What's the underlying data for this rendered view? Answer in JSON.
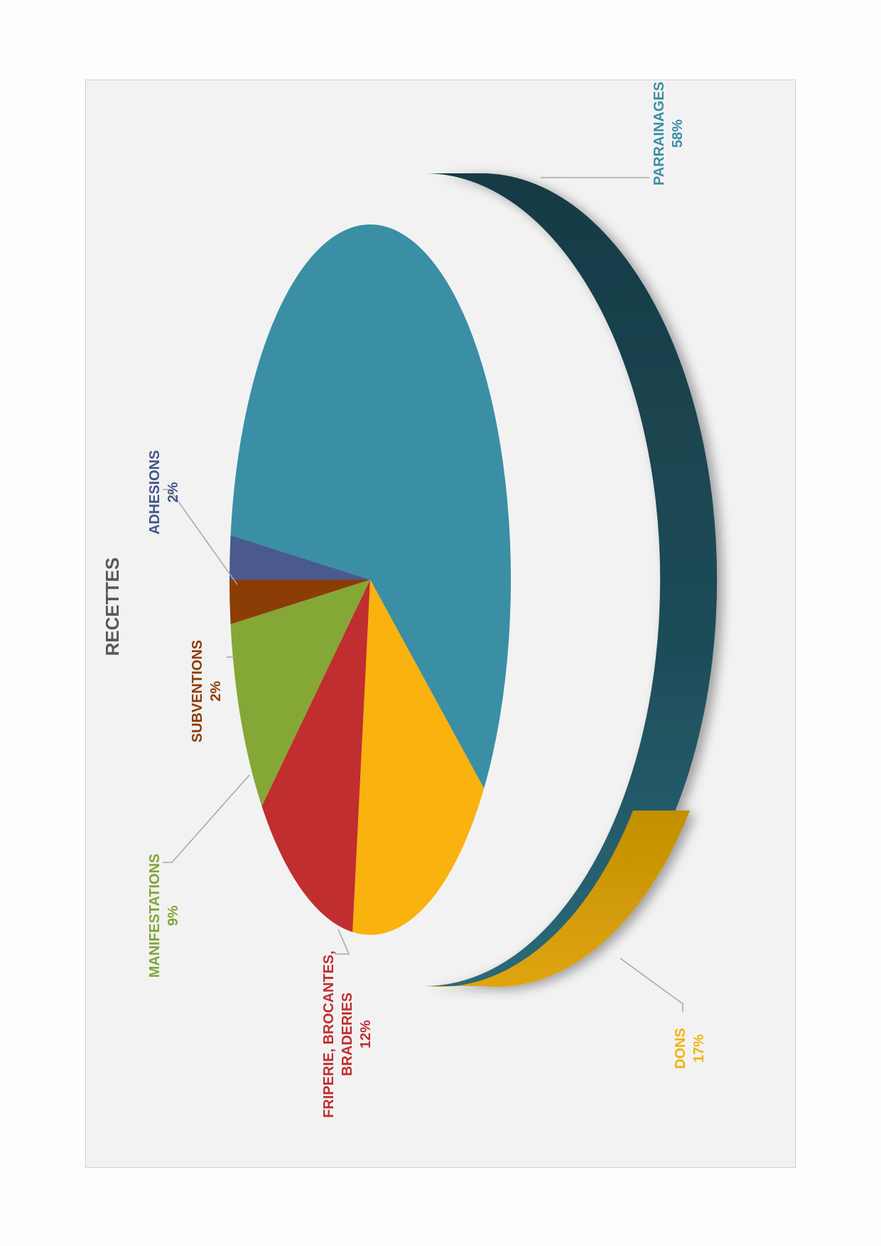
{
  "chart_data": {
    "type": "pie",
    "title": "RECETTES",
    "slices": [
      {
        "label": "ADHESIONS",
        "percent_label": "2%",
        "value": 2,
        "color": "#4a5a8e"
      },
      {
        "label": "PARRAINAGES",
        "percent_label": "58%",
        "value": 58,
        "color": "#3a8fa5"
      },
      {
        "label": "DONS",
        "percent_label": "17%",
        "value": 17,
        "color": "#f9b20e"
      },
      {
        "label": "FRIPERIE, BROCANTES, BRADERIES",
        "label_lines": [
          "FRIPERIE, BROCANTES,",
          "BRADERIES"
        ],
        "percent_label": "12%",
        "value": 12,
        "color": "#c02e2f"
      },
      {
        "label": "MANIFESTATIONS",
        "percent_label": "9%",
        "value": 9,
        "color": "#85a736"
      },
      {
        "label": "SUBVENTIONS",
        "percent_label": "2%",
        "value": 2,
        "color": "#8b3d06"
      }
    ],
    "label_colors": {
      "ADHESIONS": "#44548a",
      "PARRAINAGES": "#3a8fa5",
      "DONS": "#f2b30b",
      "FRIPERIE, BROCANTES, BRADERIES": "#c02e2f",
      "MANIFESTATIONS": "#7fa637",
      "SUBVENTIONS": "#8b3d06"
    },
    "style": "3d",
    "orientation": "rotated-90-clockwise",
    "legend": "none"
  }
}
